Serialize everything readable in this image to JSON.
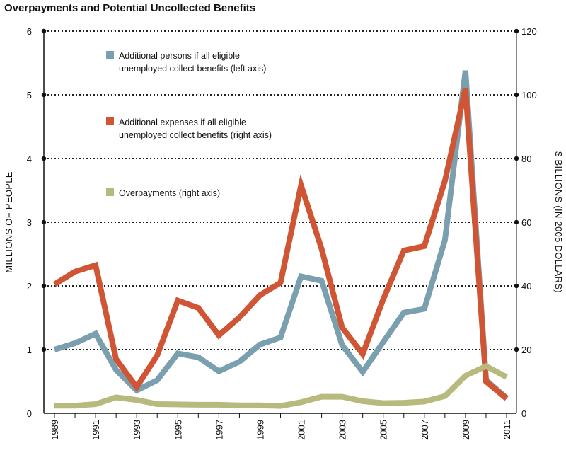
{
  "chart_data": {
    "type": "line",
    "title": "Overpayments and Potential Uncollected Benefits",
    "xlabel": "",
    "ylabel_left": "MILLIONS OF PEOPLE",
    "ylabel_right": "$ BILLIONS (IN 2005 DOLLARS)",
    "x": [
      1989,
      1990,
      1991,
      1992,
      1993,
      1994,
      1995,
      1996,
      1997,
      1998,
      1999,
      2000,
      2001,
      2002,
      2003,
      2004,
      2005,
      2006,
      2007,
      2008,
      2009,
      2010,
      2011
    ],
    "x_tick_labels": [
      "1989",
      "1991",
      "1993",
      "1995",
      "1997",
      "1999",
      "2001",
      "2003",
      "2005",
      "2007",
      "2009",
      "2011"
    ],
    "ylim_left": [
      0,
      6
    ],
    "ylim_right": [
      0,
      120
    ],
    "y_ticks_left": [
      "0",
      "1",
      "2",
      "3",
      "4",
      "5",
      "6"
    ],
    "y_ticks_right": [
      "0",
      "20",
      "40",
      "60",
      "80",
      "100",
      "120"
    ],
    "grid": "dotted horizontal",
    "legend_placement": "top-left",
    "series": [
      {
        "name": "Additional persons if all eligible unemployed collect benefits (left axis)",
        "legend_lines": [
          "Additional persons if all eligible",
          "unemployed collect benefits (left axis)"
        ],
        "axis": "left",
        "color": "#7A9FAE",
        "values": [
          1.0,
          1.1,
          1.25,
          0.68,
          0.36,
          0.52,
          0.94,
          0.88,
          0.66,
          0.81,
          1.08,
          1.19,
          2.15,
          2.08,
          1.07,
          0.65,
          1.12,
          1.58,
          1.64,
          2.72,
          5.38,
          0.52,
          0.24
        ]
      },
      {
        "name": "Additional expenses if all eligible unemployed collect benefits (right axis)",
        "legend_lines": [
          "Additional expenses if all eligible",
          "unemployed collect benefits (right axis)"
        ],
        "axis": "right",
        "color": "#CF5534",
        "values": [
          40.5,
          44.5,
          46.5,
          17,
          8.2,
          18.2,
          35.4,
          33.1,
          24.5,
          30.1,
          37.1,
          41,
          71.6,
          51.6,
          26.9,
          18.6,
          35.8,
          51.1,
          52.5,
          73,
          102,
          10,
          4.6
        ]
      },
      {
        "name": "Overpayments (right axis)",
        "legend_lines": [
          "Overpayments (right axis)"
        ],
        "axis": "right",
        "color": "#B8B97C",
        "values": [
          2.4,
          2.4,
          2.9,
          5,
          4.2,
          2.9,
          2.8,
          2.7,
          2.7,
          2.5,
          2.5,
          2.3,
          3.5,
          5.2,
          5.2,
          3.8,
          3.2,
          3.3,
          3.7,
          5.4,
          11.8,
          14.8,
          11.4
        ]
      }
    ]
  }
}
